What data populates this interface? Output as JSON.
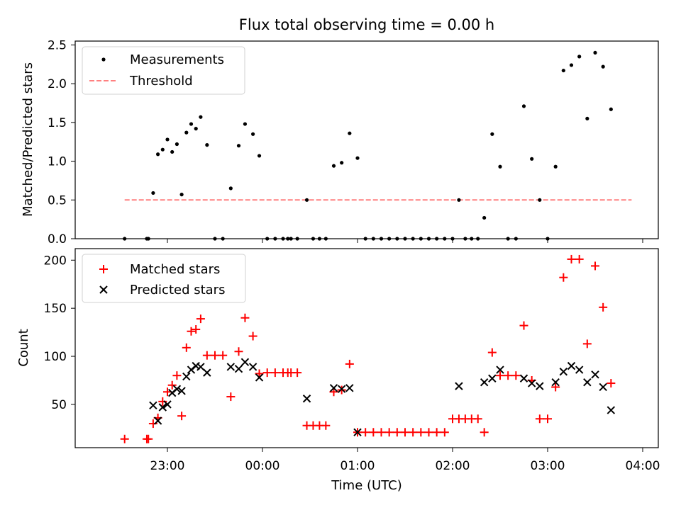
{
  "chart_data": [
    {
      "type": "scatter",
      "title": "Flux total observing time = 0.00 h",
      "xlabel": "",
      "ylabel": "Matched/Predicted stars",
      "ylim": [
        0,
        2.55
      ],
      "yticks": [
        "0.0",
        "0.5",
        "1.0",
        "1.5",
        "2.0",
        "2.5"
      ],
      "ytick_values": [
        0,
        0.5,
        1.0,
        1.5,
        2.0,
        2.5
      ],
      "grid": false,
      "legend_position": "top-left",
      "legend": [
        {
          "label": "Measurements",
          "marker": "dot",
          "color": "#000000"
        },
        {
          "label": "Threshold",
          "marker": "dashed-line",
          "color": "#ff8080"
        }
      ],
      "threshold": {
        "value": 0.5,
        "x_start": "22:33",
        "x_end": "03:53"
      },
      "series": [
        {
          "name": "Measurements",
          "marker": "dot",
          "color": "#000000",
          "points": [
            [
              "22:33",
              0.0
            ],
            [
              "22:47",
              0.0
            ],
            [
              "22:48",
              0.0
            ],
            [
              "22:51",
              0.59
            ],
            [
              "22:54",
              1.09
            ],
            [
              "22:57",
              1.15
            ],
            [
              "23:00",
              1.28
            ],
            [
              "23:03",
              1.12
            ],
            [
              "23:06",
              1.22
            ],
            [
              "23:09",
              0.57
            ],
            [
              "23:12",
              1.37
            ],
            [
              "23:15",
              1.48
            ],
            [
              "23:18",
              1.42
            ],
            [
              "23:21",
              1.57
            ],
            [
              "23:25",
              1.21
            ],
            [
              "23:30",
              0.0
            ],
            [
              "23:35",
              0.0
            ],
            [
              "23:40",
              0.65
            ],
            [
              "23:45",
              1.2
            ],
            [
              "23:49",
              1.48
            ],
            [
              "23:54",
              1.35
            ],
            [
              "23:58",
              1.07
            ],
            [
              "00:03",
              0.0
            ],
            [
              "00:08",
              0.0
            ],
            [
              "00:13",
              0.0
            ],
            [
              "00:16",
              0.0
            ],
            [
              "00:18",
              0.0
            ],
            [
              "00:22",
              0.0
            ],
            [
              "00:28",
              0.5
            ],
            [
              "00:32",
              0.0
            ],
            [
              "00:36",
              0.0
            ],
            [
              "00:40",
              0.0
            ],
            [
              "00:45",
              0.94
            ],
            [
              "00:50",
              0.98
            ],
            [
              "00:55",
              1.36
            ],
            [
              "01:00",
              1.04
            ],
            [
              "01:05",
              0.0
            ],
            [
              "01:10",
              0.0
            ],
            [
              "01:15",
              0.0
            ],
            [
              "01:20",
              0.0
            ],
            [
              "01:25",
              0.0
            ],
            [
              "01:30",
              0.0
            ],
            [
              "01:35",
              0.0
            ],
            [
              "01:40",
              0.0
            ],
            [
              "01:45",
              0.0
            ],
            [
              "01:50",
              0.0
            ],
            [
              "01:55",
              0.0
            ],
            [
              "02:00",
              0.0
            ],
            [
              "02:04",
              0.5
            ],
            [
              "02:08",
              0.0
            ],
            [
              "02:12",
              0.0
            ],
            [
              "02:16",
              0.0
            ],
            [
              "02:20",
              0.27
            ],
            [
              "02:25",
              1.35
            ],
            [
              "02:30",
              0.93
            ],
            [
              "02:35",
              0.0
            ],
            [
              "02:40",
              0.0
            ],
            [
              "02:45",
              1.71
            ],
            [
              "02:50",
              1.03
            ],
            [
              "02:55",
              0.5
            ],
            [
              "03:00",
              0.0
            ],
            [
              "03:05",
              0.93
            ],
            [
              "03:10",
              2.17
            ],
            [
              "03:15",
              2.24
            ],
            [
              "03:20",
              2.35
            ],
            [
              "03:25",
              1.55
            ],
            [
              "03:30",
              2.4
            ],
            [
              "03:35",
              2.22
            ],
            [
              "03:40",
              1.67
            ]
          ]
        }
      ]
    },
    {
      "type": "scatter",
      "title": "",
      "xlabel": "Time (UTC)",
      "ylabel": "Count",
      "ylim": [
        5,
        212
      ],
      "yticks": [
        "50",
        "100",
        "150",
        "200"
      ],
      "ytick_values": [
        50,
        100,
        150,
        200
      ],
      "xticks": [
        "23:00",
        "00:00",
        "01:00",
        "02:00",
        "03:00",
        "04:00"
      ],
      "grid": false,
      "legend_position": "top-left",
      "legend": [
        {
          "label": "Matched stars",
          "marker": "plus",
          "color": "#ff0000"
        },
        {
          "label": "Predicted stars",
          "marker": "x",
          "color": "#000000"
        }
      ],
      "series": [
        {
          "name": "Matched stars",
          "marker": "plus",
          "color": "#ff0000",
          "points": [
            [
              "22:33",
              14
            ],
            [
              "22:47",
              14
            ],
            [
              "22:48",
              14
            ],
            [
              "22:51",
              30
            ],
            [
              "22:54",
              36
            ],
            [
              "22:57",
              53
            ],
            [
              "23:00",
              63
            ],
            [
              "23:03",
              70
            ],
            [
              "23:06",
              80
            ],
            [
              "23:09",
              38
            ],
            [
              "23:12",
              109
            ],
            [
              "23:15",
              126
            ],
            [
              "23:18",
              128
            ],
            [
              "23:21",
              139
            ],
            [
              "23:25",
              101
            ],
            [
              "23:30",
              101
            ],
            [
              "23:35",
              101
            ],
            [
              "23:40",
              58
            ],
            [
              "23:45",
              105
            ],
            [
              "23:49",
              140
            ],
            [
              "23:54",
              121
            ],
            [
              "23:58",
              82
            ],
            [
              "00:03",
              83
            ],
            [
              "00:08",
              83
            ],
            [
              "00:13",
              83
            ],
            [
              "00:16",
              83
            ],
            [
              "00:18",
              83
            ],
            [
              "00:22",
              83
            ],
            [
              "00:28",
              28
            ],
            [
              "00:32",
              28
            ],
            [
              "00:36",
              28
            ],
            [
              "00:40",
              28
            ],
            [
              "00:45",
              63
            ],
            [
              "00:50",
              65
            ],
            [
              "00:55",
              92
            ],
            [
              "01:00",
              21
            ],
            [
              "01:05",
              21
            ],
            [
              "01:10",
              21
            ],
            [
              "01:15",
              21
            ],
            [
              "01:20",
              21
            ],
            [
              "01:25",
              21
            ],
            [
              "01:30",
              21
            ],
            [
              "01:35",
              21
            ],
            [
              "01:40",
              21
            ],
            [
              "01:45",
              21
            ],
            [
              "01:50",
              21
            ],
            [
              "01:55",
              21
            ],
            [
              "02:00",
              35
            ],
            [
              "02:04",
              35
            ],
            [
              "02:08",
              35
            ],
            [
              "02:12",
              35
            ],
            [
              "02:16",
              35
            ],
            [
              "02:20",
              21
            ],
            [
              "02:25",
              104
            ],
            [
              "02:30",
              80
            ],
            [
              "02:35",
              80
            ],
            [
              "02:40",
              80
            ],
            [
              "02:45",
              132
            ],
            [
              "02:50",
              75
            ],
            [
              "02:55",
              35
            ],
            [
              "03:00",
              35
            ],
            [
              "03:05",
              68
            ],
            [
              "03:10",
              182
            ],
            [
              "03:15",
              201
            ],
            [
              "03:20",
              201
            ],
            [
              "03:25",
              113
            ],
            [
              "03:30",
              194
            ],
            [
              "03:35",
              151
            ],
            [
              "03:40",
              72
            ]
          ]
        },
        {
          "name": "Predicted stars",
          "marker": "x",
          "color": "#000000",
          "points": [
            [
              "22:51",
              49
            ],
            [
              "22:54",
              33
            ],
            [
              "22:57",
              47
            ],
            [
              "23:00",
              50
            ],
            [
              "23:03",
              62
            ],
            [
              "23:06",
              66
            ],
            [
              "23:09",
              64
            ],
            [
              "23:12",
              79
            ],
            [
              "23:15",
              86
            ],
            [
              "23:18",
              90
            ],
            [
              "23:21",
              89
            ],
            [
              "23:25",
              83
            ],
            [
              "23:40",
              89
            ],
            [
              "23:45",
              87
            ],
            [
              "23:49",
              94
            ],
            [
              "23:54",
              89
            ],
            [
              "23:58",
              78
            ],
            [
              "00:28",
              56
            ],
            [
              "00:45",
              67
            ],
            [
              "00:50",
              66
            ],
            [
              "00:55",
              67
            ],
            [
              "01:00",
              21
            ],
            [
              "02:04",
              69
            ],
            [
              "02:20",
              73
            ],
            [
              "02:25",
              77
            ],
            [
              "02:30",
              86
            ],
            [
              "02:45",
              77
            ],
            [
              "02:50",
              72
            ],
            [
              "02:55",
              69
            ],
            [
              "03:05",
              73
            ],
            [
              "03:10",
              84
            ],
            [
              "03:15",
              90
            ],
            [
              "03:20",
              86
            ],
            [
              "03:25",
              73
            ],
            [
              "03:30",
              81
            ],
            [
              "03:35",
              68
            ],
            [
              "03:40",
              44
            ]
          ]
        }
      ]
    }
  ]
}
